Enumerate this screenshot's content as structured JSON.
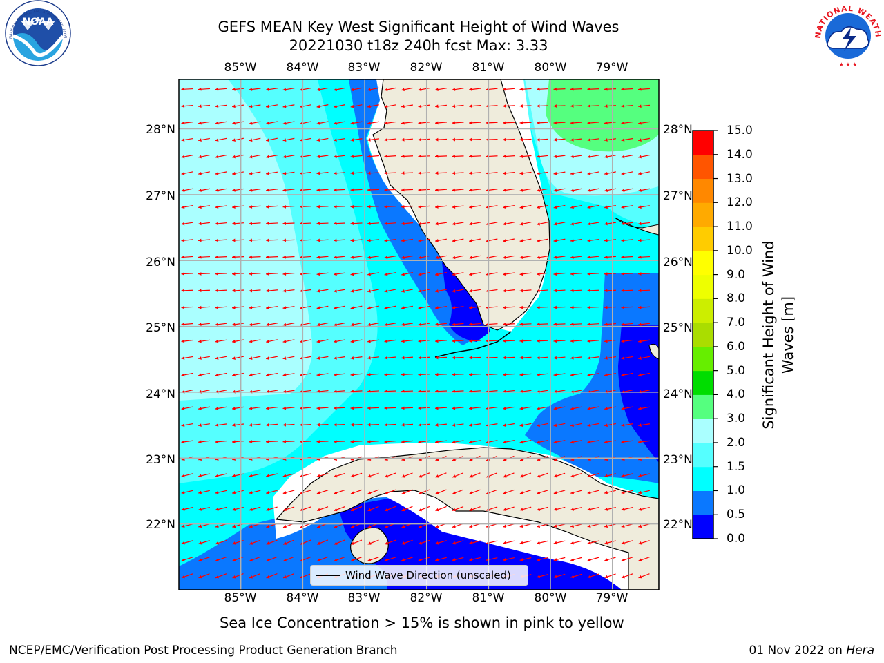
{
  "title": {
    "line1": "GEFS MEAN Key West Significant Height of Wind Waves",
    "line2": "20221030 t18z 240h fcst   Max: 3.33"
  },
  "logos": {
    "noaa": {
      "text": "NOAA",
      "ring_text": "NATIONAL OCEANIC AND ATMOSPHERIC ADMINISTRATION · U.S. DEPARTMENT OF COMMERCE"
    },
    "nws": {
      "ring_text": "NATIONAL WEATHER SERVICE"
    }
  },
  "map": {
    "lon_labels": [
      "85°W",
      "84°W",
      "83°W",
      "82°W",
      "81°W",
      "80°W",
      "79°W"
    ],
    "lat_labels": [
      "28°N",
      "27°N",
      "26°N",
      "25°N",
      "24°N",
      "23°N",
      "22°N"
    ],
    "lon_range": [
      -86.0,
      -78.25
    ],
    "lat_range": [
      21.0,
      28.75
    ],
    "colors": {
      "land": "#efecdc",
      "grid": "#b0b0b0",
      "arrow": "#ff0000",
      "coast": "#000000"
    }
  },
  "colorbar": {
    "label": "Significant Height of Wind Waves [m]",
    "ticks": [
      "15.0",
      "14.0",
      "13.0",
      "12.0",
      "11.0",
      "10.0",
      "9.0",
      "8.0",
      "7.0",
      "6.0",
      "5.0",
      "4.0",
      "3.0",
      "2.0",
      "1.5",
      "1.0",
      "0.5",
      "0.0"
    ],
    "bins_bottom_to_top": [
      {
        "from": 0.0,
        "to": 0.5,
        "color": "#0000ff"
      },
      {
        "from": 0.5,
        "to": 1.0,
        "color": "#0a78ff"
      },
      {
        "from": 1.0,
        "to": 1.5,
        "color": "#00ffff"
      },
      {
        "from": 1.5,
        "to": 2.0,
        "color": "#55ffff"
      },
      {
        "from": 2.0,
        "to": 3.0,
        "color": "#aaffff"
      },
      {
        "from": 3.0,
        "to": 4.0,
        "color": "#55ff7f"
      },
      {
        "from": 4.0,
        "to": 5.0,
        "color": "#00dd00"
      },
      {
        "from": 5.0,
        "to": 6.0,
        "color": "#66ee00"
      },
      {
        "from": 6.0,
        "to": 7.0,
        "color": "#aadd00"
      },
      {
        "from": 7.0,
        "to": 8.0,
        "color": "#ccee00"
      },
      {
        "from": 8.0,
        "to": 9.0,
        "color": "#eeff00"
      },
      {
        "from": 9.0,
        "to": 10.0,
        "color": "#ffff00"
      },
      {
        "from": 10.0,
        "to": 11.0,
        "color": "#ffcc00"
      },
      {
        "from": 11.0,
        "to": 12.0,
        "color": "#ffaa00"
      },
      {
        "from": 12.0,
        "to": 13.0,
        "color": "#ff8800"
      },
      {
        "from": 13.0,
        "to": 14.0,
        "color": "#ff5500"
      },
      {
        "from": 14.0,
        "to": 15.0,
        "color": "#ff0000"
      }
    ]
  },
  "legend": {
    "label": "Wind Wave Direction (unscaled)"
  },
  "sea_ice_note": "Sea Ice Concentration > 15% is shown in pink to yellow",
  "footer": {
    "left": "NCEP/EMC/Verification Post Processing Product Generation Branch",
    "date": "01 Nov 2022 on",
    "machine": "Hera"
  }
}
